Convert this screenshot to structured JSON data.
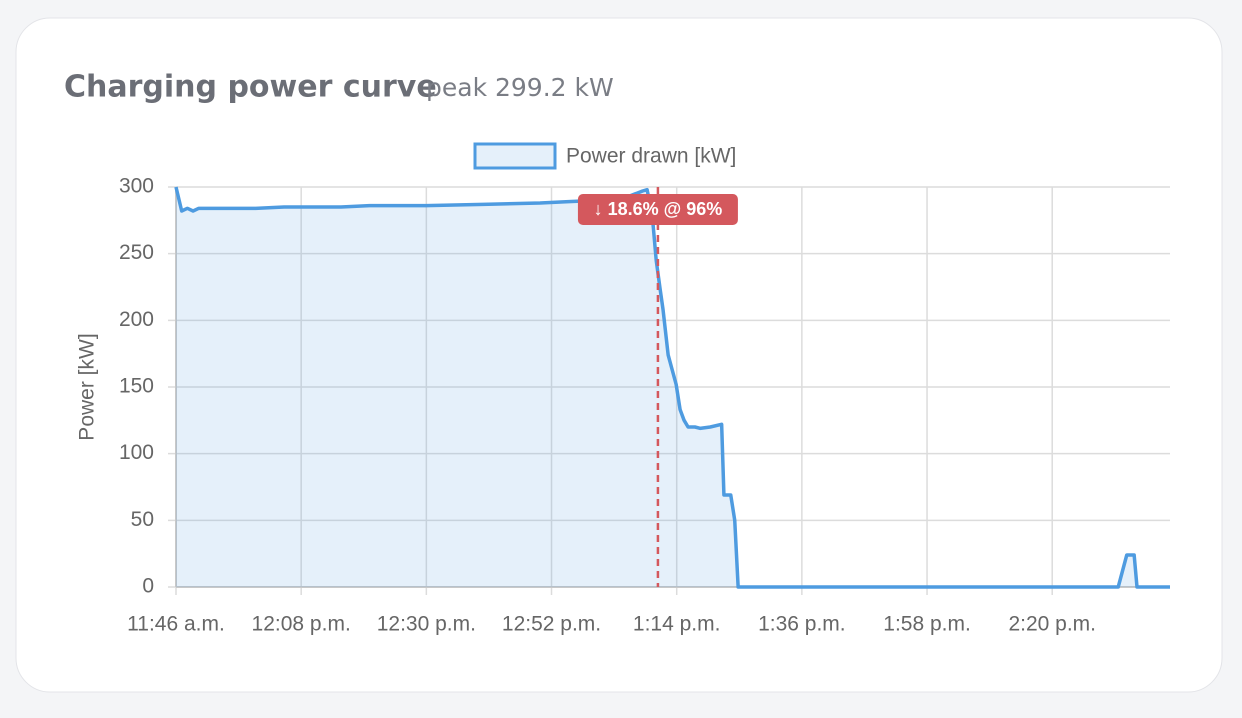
{
  "chart_data": {
    "type": "area",
    "title": "Charging power curve",
    "subtitle": "peak 299.2 kW",
    "ylabel": "Power [kW]",
    "x": [
      706,
      707,
      708,
      709,
      710,
      715,
      720,
      725,
      730,
      735,
      740,
      750,
      760,
      770,
      775,
      780,
      785,
      788,
      788.8,
      789.7,
      790.4,
      791.1,
      791.6,
      792.5,
      793.2,
      793.9,
      794.6,
      795.3,
      796,
      797.2,
      798.1,
      799.9,
      801.9,
      802.3,
      803.5,
      804.2,
      804.8,
      871.6,
      873.1,
      874.4,
      874.9,
      880.7
    ],
    "series": [
      {
        "name": "Power drawn [kW]",
        "color": "#4e9be0",
        "values": [
          300,
          282,
          284,
          282,
          284,
          284,
          284,
          285,
          285,
          285,
          286,
          286,
          287,
          288,
          289,
          290,
          292,
          297,
          298,
          279,
          245,
          223,
          208,
          174,
          163,
          152,
          133,
          125,
          120,
          120,
          119,
          120,
          122,
          69,
          69,
          50,
          0,
          0,
          24,
          24,
          0,
          0
        ]
      }
    ],
    "xlim": [
      706,
      880.7
    ],
    "xticks": [
      {
        "value": 706,
        "label": "11:46 a.m."
      },
      {
        "value": 728,
        "label": "12:08 p.m."
      },
      {
        "value": 750,
        "label": "12:30 p.m."
      },
      {
        "value": 772,
        "label": "12:52 p.m."
      },
      {
        "value": 794,
        "label": "1:14 p.m."
      },
      {
        "value": 816,
        "label": "1:36 p.m."
      },
      {
        "value": 838,
        "label": "1:58 p.m."
      },
      {
        "value": 860,
        "label": "2:20 p.m."
      }
    ],
    "ylim": [
      0,
      300
    ],
    "yticks": [
      0,
      50,
      100,
      150,
      200,
      250,
      300
    ],
    "grid": true,
    "annotations": [
      {
        "text": "↓ 18.6% @ 96%",
        "x": 790.7,
        "color": "#d4585d"
      }
    ]
  }
}
